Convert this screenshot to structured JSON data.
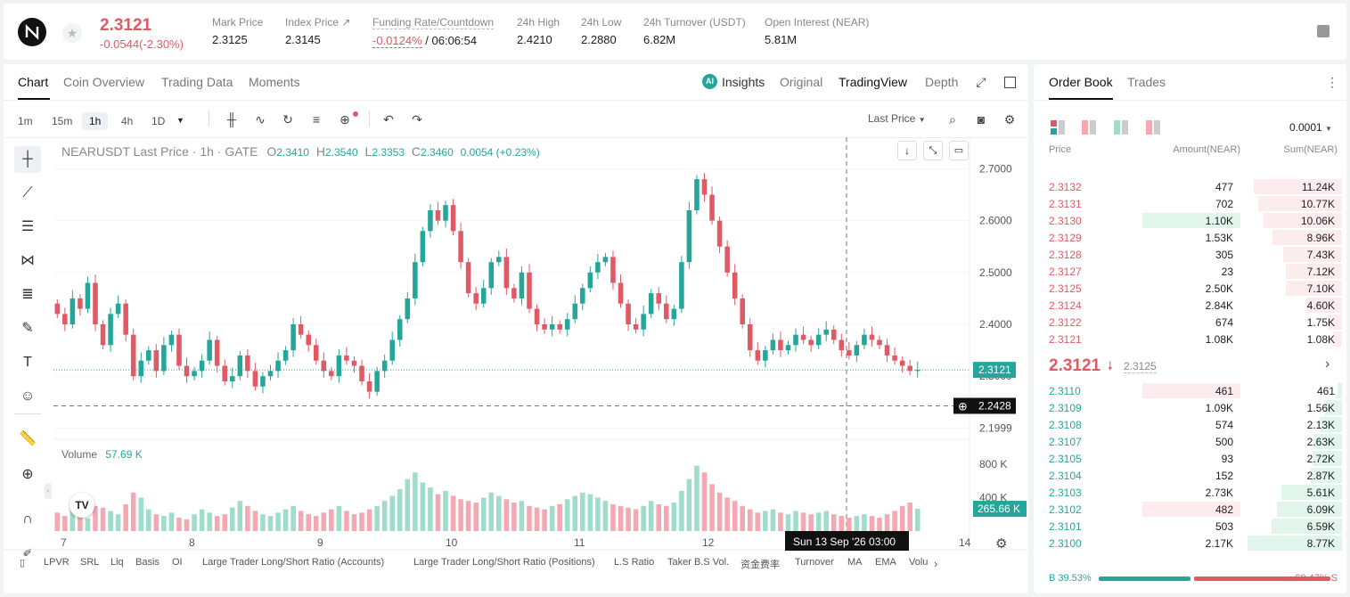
{
  "header": {
    "last_price": "2.3121",
    "change": "-0.0544(-2.30%)",
    "stats": [
      {
        "label": "Mark Price",
        "value": "2.3125"
      },
      {
        "label": "Index Price ↗",
        "value": "2.3145"
      },
      {
        "label": "Funding Rate/Countdown",
        "value_red": "-0.0124%",
        "value": "/ 06:06:54"
      },
      {
        "label": "24h High",
        "value": "2.4210"
      },
      {
        "label": "24h Low",
        "value": "2.2880"
      },
      {
        "label": "24h Turnover (USDT)",
        "value": "6.82M"
      },
      {
        "label": "Open Interest (NEAR)",
        "value": "5.81M"
      }
    ]
  },
  "chart_tabs": [
    "Chart",
    "Coin Overview",
    "Trading Data",
    "Moments"
  ],
  "view_tabs": {
    "insights": "Insights",
    "original": "Original",
    "tradingview": "TradingView",
    "depth": "Depth"
  },
  "timeframes": [
    "1m",
    "15m",
    "1h",
    "4h",
    "1D"
  ],
  "price_type": "Last Price",
  "legend": {
    "symbol": "NEARUSDT Last Price · 1h · GATE",
    "o_label": "O",
    "o": "2.3410",
    "h_label": "H",
    "h": "2.3540",
    "l_label": "L",
    "l": "2.3353",
    "c_label": "C",
    "c": "2.3460",
    "chg": "0.0054 (+0.23%)"
  },
  "volume_label": "Volume",
  "volume_value": "57.69 K",
  "price_axis": [
    "2.7000",
    "2.6000",
    "2.5000",
    "2.4000",
    "2.3000",
    "2.1999"
  ],
  "volume_axis": [
    "800 K",
    "400 K"
  ],
  "last_price_tag": "2.3121",
  "crosshair_price_tag": "2.2428",
  "volume_tag": "265.66 K",
  "time_axis": [
    "7",
    "8",
    "9",
    "10",
    "11",
    "12",
    "14"
  ],
  "crosshair_time": "Sun 13 Sep '26   03:00",
  "bottom_indicators": [
    "LPVR",
    "SRL",
    "Liq",
    "Basis",
    "OI",
    "Large Trader Long/Short Ratio (Accounts)",
    "Large Trader Long/Short Ratio (Positions)",
    "L.S Ratio",
    "Taker B.S Vol.",
    "资金费率",
    "Turnover",
    "MA",
    "EMA",
    "Volu"
  ],
  "chart_data": {
    "type": "candlestick",
    "yrange": [
      2.18,
      2.73
    ],
    "close_series": [
      2.42,
      2.4,
      2.45,
      2.43,
      2.48,
      2.4,
      2.36,
      2.42,
      2.44,
      2.38,
      2.3,
      2.33,
      2.35,
      2.31,
      2.36,
      2.38,
      2.32,
      2.3,
      2.31,
      2.33,
      2.37,
      2.32,
      2.29,
      2.3,
      2.34,
      2.31,
      2.28,
      2.3,
      2.31,
      2.33,
      2.35,
      2.4,
      2.38,
      2.36,
      2.33,
      2.31,
      2.3,
      2.34,
      2.33,
      2.32,
      2.29,
      2.27,
      2.31,
      2.33,
      2.37,
      2.41,
      2.45,
      2.52,
      2.58,
      2.62,
      2.6,
      2.63,
      2.58,
      2.52,
      2.46,
      2.44,
      2.47,
      2.52,
      2.53,
      2.47,
      2.45,
      2.5,
      2.43,
      2.4,
      2.39,
      2.4,
      2.39,
      2.41,
      2.44,
      2.47,
      2.5,
      2.52,
      2.53,
      2.48,
      2.44,
      2.4,
      2.39,
      2.42,
      2.46,
      2.44,
      2.41,
      2.43,
      2.52,
      2.62,
      2.68,
      2.65,
      2.6,
      2.55,
      2.5,
      2.45,
      2.4,
      2.35,
      2.33,
      2.35,
      2.37,
      2.35,
      2.36,
      2.38,
      2.37,
      2.36,
      2.38,
      2.39,
      2.37,
      2.35,
      2.34,
      2.36,
      2.38,
      2.37,
      2.36,
      2.34,
      2.33,
      2.32,
      2.31,
      2.3121
    ],
    "volume_series": [
      220,
      180,
      260,
      200,
      150,
      300,
      280,
      240,
      200,
      320,
      460,
      400,
      260,
      200,
      180,
      220,
      160,
      140,
      200,
      260,
      220,
      180,
      200,
      280,
      360,
      300,
      240,
      200,
      180,
      220,
      260,
      300,
      240,
      200,
      180,
      220,
      260,
      300,
      240,
      200,
      220,
      260,
      300,
      360,
      420,
      500,
      620,
      700,
      580,
      520,
      440,
      480,
      420,
      380,
      360,
      340,
      400,
      460,
      420,
      380,
      340,
      360,
      300,
      280,
      260,
      300,
      320,
      380,
      420,
      460,
      440,
      400,
      360,
      320,
      300,
      280,
      260,
      300,
      360,
      320,
      300,
      340,
      480,
      620,
      780,
      700,
      560,
      460,
      400,
      360,
      300,
      260,
      220,
      240,
      260,
      220,
      200,
      240,
      220,
      200,
      220,
      240,
      200,
      180,
      160,
      180,
      200,
      180,
      160,
      200,
      240,
      300,
      340,
      265.66
    ],
    "volume_range": [
      0,
      1000
    ]
  },
  "orderbook": {
    "tabs": [
      "Order Book",
      "Trades"
    ],
    "precision": "0.0001",
    "headers": {
      "price": "Price",
      "amount": "Amount(NEAR)",
      "sum": "Sum(NEAR)"
    },
    "asks": [
      {
        "price": "2.3132",
        "amount": "477",
        "sum": "11.24K",
        "depth": 0.93,
        "amt_frac": 0
      },
      {
        "price": "2.3131",
        "amount": "702",
        "sum": "10.77K",
        "depth": 0.89,
        "amt_frac": 0
      },
      {
        "price": "2.3130",
        "amount": "1.10K",
        "sum": "10.06K",
        "depth": 0.83,
        "amt_frac": 0.92
      },
      {
        "price": "2.3129",
        "amount": "1.53K",
        "sum": "8.96K",
        "depth": 0.74,
        "amt_frac": 0
      },
      {
        "price": "2.3128",
        "amount": "305",
        "sum": "7.43K",
        "depth": 0.62,
        "amt_frac": 0
      },
      {
        "price": "2.3127",
        "amount": "23",
        "sum": "7.12K",
        "depth": 0.59,
        "amt_frac": 0
      },
      {
        "price": "2.3125",
        "amount": "2.50K",
        "sum": "7.10K",
        "depth": 0.59,
        "amt_frac": 0
      },
      {
        "price": "2.3124",
        "amount": "2.84K",
        "sum": "4.60K",
        "depth": 0.38,
        "amt_frac": 0
      },
      {
        "price": "2.3122",
        "amount": "674",
        "sum": "1.75K",
        "depth": 0.15,
        "amt_frac": 0
      },
      {
        "price": "2.3121",
        "amount": "1.08K",
        "sum": "1.08K",
        "depth": 0.09,
        "amt_frac": 0
      }
    ],
    "mid_price": "2.3121",
    "mid_mark": "2.3125",
    "bids": [
      {
        "price": "2.3110",
        "amount": "461",
        "sum": "461",
        "depth": 0.05,
        "amt_frac": 0.92
      },
      {
        "price": "2.3109",
        "amount": "1.09K",
        "sum": "1.56K",
        "depth": 0.18,
        "amt_frac": 0
      },
      {
        "price": "2.3108",
        "amount": "574",
        "sum": "2.13K",
        "depth": 0.24,
        "amt_frac": 0
      },
      {
        "price": "2.3107",
        "amount": "500",
        "sum": "2.63K",
        "depth": 0.3,
        "amt_frac": 0
      },
      {
        "price": "2.3105",
        "amount": "93",
        "sum": "2.72K",
        "depth": 0.31,
        "amt_frac": 0
      },
      {
        "price": "2.3104",
        "amount": "152",
        "sum": "2.87K",
        "depth": 0.33,
        "amt_frac": 0
      },
      {
        "price": "2.3103",
        "amount": "2.73K",
        "sum": "5.61K",
        "depth": 0.64,
        "amt_frac": 0
      },
      {
        "price": "2.3102",
        "amount": "482",
        "sum": "6.09K",
        "depth": 0.69,
        "amt_frac": 0.92
      },
      {
        "price": "2.3101",
        "amount": "503",
        "sum": "6.59K",
        "depth": 0.75,
        "amt_frac": 0
      },
      {
        "price": "2.3100",
        "amount": "2.17K",
        "sum": "8.77K",
        "depth": 1.0,
        "amt_frac": 0
      }
    ],
    "buy_ratio": "B 39.53%",
    "sell_ratio": "60.47% S",
    "buy_frac": 0.3953
  },
  "colors": {
    "up": "#26a69a",
    "down": "#e05a66",
    "up_vol": "#9fdcc9",
    "down_vol": "#f3a8b2"
  }
}
